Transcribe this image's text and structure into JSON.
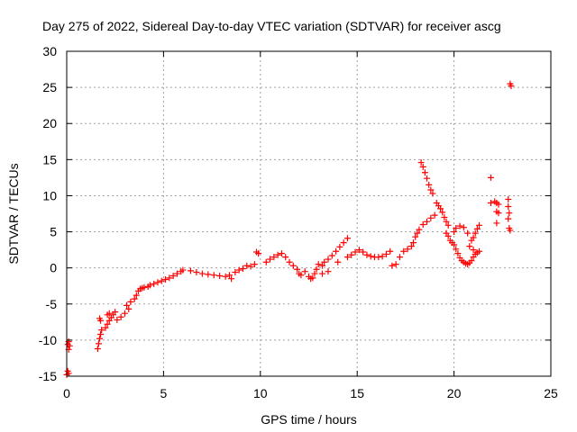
{
  "chart_data": {
    "type": "scatter",
    "title": "Day 275 of 2022, Sidereal Day-to-day VTEC variation (SDTVAR) for receiver ascg",
    "xlabel": "GPS time / hours",
    "ylabel": "SDTVAR / TECUs",
    "xlim": [
      0,
      25
    ],
    "ylim": [
      -15,
      30
    ],
    "xticks": [
      0,
      5,
      10,
      15,
      20,
      25
    ],
    "yticks": [
      -15,
      -10,
      -5,
      0,
      5,
      10,
      15,
      20,
      25,
      30
    ],
    "grid": true,
    "marker": "+",
    "series": [
      {
        "name": "SDTVAR",
        "color": "#ff0000",
        "points": [
          [
            0.0,
            -14.8
          ],
          [
            0.05,
            -14.3
          ],
          [
            0.1,
            -14.6
          ],
          [
            0.05,
            -10.6
          ],
          [
            0.1,
            -10.2
          ],
          [
            0.15,
            -10.8
          ],
          [
            0.1,
            -11.3
          ],
          [
            1.6,
            -11.2
          ],
          [
            1.65,
            -10.5
          ],
          [
            1.7,
            -9.8
          ],
          [
            1.75,
            -9.2
          ],
          [
            1.8,
            -8.6
          ],
          [
            1.7,
            -7.0
          ],
          [
            1.75,
            -7.3
          ],
          [
            2.0,
            -8.3
          ],
          [
            2.1,
            -7.8
          ],
          [
            2.2,
            -7.3
          ],
          [
            2.3,
            -6.9
          ],
          [
            2.4,
            -6.5
          ],
          [
            2.5,
            -6.1
          ],
          [
            2.1,
            -6.5
          ],
          [
            2.2,
            -6.3
          ],
          [
            2.6,
            -7.2
          ],
          [
            2.8,
            -6.8
          ],
          [
            3.0,
            -6.3
          ],
          [
            3.2,
            -5.7
          ],
          [
            3.1,
            -5.2
          ],
          [
            3.3,
            -4.7
          ],
          [
            3.5,
            -4.3
          ],
          [
            3.6,
            -3.8
          ],
          [
            3.7,
            -3.2
          ],
          [
            3.8,
            -2.9
          ],
          [
            3.9,
            -2.8
          ],
          [
            4.0,
            -2.7
          ],
          [
            4.2,
            -2.6
          ],
          [
            4.3,
            -2.4
          ],
          [
            4.5,
            -2.2
          ],
          [
            4.7,
            -2.0
          ],
          [
            4.9,
            -1.8
          ],
          [
            5.1,
            -1.6
          ],
          [
            5.3,
            -1.4
          ],
          [
            5.5,
            -1.1
          ],
          [
            5.7,
            -0.8
          ],
          [
            5.9,
            -0.5
          ],
          [
            6.0,
            -0.3
          ],
          [
            6.4,
            -0.4
          ],
          [
            6.7,
            -0.6
          ],
          [
            7.0,
            -0.8
          ],
          [
            7.3,
            -0.9
          ],
          [
            7.6,
            -1.0
          ],
          [
            7.9,
            -1.1
          ],
          [
            8.2,
            -1.2
          ],
          [
            8.4,
            -1.0
          ],
          [
            8.7,
            -0.6
          ],
          [
            8.9,
            -0.3
          ],
          [
            9.1,
            -0.1
          ],
          [
            8.5,
            -1.5
          ],
          [
            9.3,
            0.3
          ],
          [
            9.5,
            0.2
          ],
          [
            9.7,
            0.5
          ],
          [
            9.8,
            2.2
          ],
          [
            9.9,
            2.0
          ],
          [
            10.3,
            0.8
          ],
          [
            10.5,
            1.2
          ],
          [
            10.7,
            1.5
          ],
          [
            10.9,
            1.8
          ],
          [
            11.1,
            2.0
          ],
          [
            11.3,
            1.5
          ],
          [
            11.5,
            0.8
          ],
          [
            11.7,
            0.3
          ],
          [
            11.9,
            -0.2
          ],
          [
            12.0,
            -0.8
          ],
          [
            12.1,
            -1.0
          ],
          [
            12.3,
            -0.5
          ],
          [
            12.5,
            -1.2
          ],
          [
            12.6,
            -1.5
          ],
          [
            12.7,
            -1.4
          ],
          [
            12.8,
            -0.8
          ],
          [
            12.9,
            -0.2
          ],
          [
            13.0,
            0.5
          ],
          [
            13.2,
            0.3
          ],
          [
            13.3,
            0.8
          ],
          [
            13.5,
            1.2
          ],
          [
            13.7,
            1.7
          ],
          [
            13.9,
            2.3
          ],
          [
            14.1,
            2.9
          ],
          [
            14.3,
            3.5
          ],
          [
            14.5,
            4.1
          ],
          [
            13.2,
            -0.8
          ],
          [
            13.5,
            -0.5
          ],
          [
            14.0,
            0.8
          ],
          [
            14.5,
            1.5
          ],
          [
            14.7,
            1.8
          ],
          [
            14.9,
            2.2
          ],
          [
            15.1,
            2.5
          ],
          [
            15.3,
            2.2
          ],
          [
            15.5,
            1.8
          ],
          [
            15.7,
            1.6
          ],
          [
            15.9,
            1.5
          ],
          [
            16.1,
            1.5
          ],
          [
            16.3,
            1.6
          ],
          [
            16.5,
            1.9
          ],
          [
            16.7,
            2.3
          ],
          [
            16.8,
            0.3
          ],
          [
            17.0,
            0.5
          ],
          [
            17.2,
            1.5
          ],
          [
            17.4,
            2.3
          ],
          [
            17.6,
            2.6
          ],
          [
            17.8,
            3.0
          ],
          [
            17.9,
            3.5
          ],
          [
            18.0,
            4.3
          ],
          [
            18.1,
            4.8
          ],
          [
            18.2,
            5.3
          ],
          [
            18.4,
            6.0
          ],
          [
            18.6,
            6.4
          ],
          [
            18.8,
            6.9
          ],
          [
            19.0,
            7.3
          ],
          [
            18.3,
            14.6
          ],
          [
            18.4,
            14.0
          ],
          [
            18.5,
            13.2
          ],
          [
            18.6,
            12.4
          ],
          [
            18.7,
            11.5
          ],
          [
            18.8,
            10.8
          ],
          [
            18.9,
            10.3
          ],
          [
            19.1,
            9.0
          ],
          [
            19.2,
            8.6
          ],
          [
            19.3,
            8.2
          ],
          [
            19.4,
            7.7
          ],
          [
            19.5,
            7.0
          ],
          [
            19.6,
            6.4
          ],
          [
            19.7,
            5.9
          ],
          [
            19.6,
            4.8
          ],
          [
            19.7,
            4.4
          ],
          [
            19.8,
            3.8
          ],
          [
            19.9,
            3.5
          ],
          [
            20.0,
            3.2
          ],
          [
            20.1,
            2.6
          ],
          [
            20.2,
            2.0
          ],
          [
            20.3,
            1.4
          ],
          [
            20.4,
            1.0
          ],
          [
            20.5,
            0.8
          ],
          [
            20.6,
            0.6
          ],
          [
            20.7,
            0.5
          ],
          [
            20.8,
            0.7
          ],
          [
            20.9,
            1.0
          ],
          [
            21.0,
            1.5
          ],
          [
            21.1,
            1.9
          ],
          [
            21.2,
            2.1
          ],
          [
            21.3,
            2.3
          ],
          [
            20.0,
            5.0
          ],
          [
            20.1,
            5.5
          ],
          [
            20.3,
            5.8
          ],
          [
            20.5,
            5.6
          ],
          [
            20.7,
            4.8
          ],
          [
            20.9,
            3.8
          ],
          [
            21.0,
            4.2
          ],
          [
            21.1,
            4.8
          ],
          [
            21.2,
            5.4
          ],
          [
            21.3,
            5.9
          ],
          [
            20.8,
            3.0
          ],
          [
            21.0,
            2.5
          ],
          [
            21.9,
            12.5
          ],
          [
            21.9,
            9.0
          ],
          [
            22.1,
            9.2
          ],
          [
            22.2,
            9.0
          ],
          [
            22.3,
            8.8
          ],
          [
            22.2,
            7.8
          ],
          [
            22.3,
            7.6
          ],
          [
            22.2,
            6.2
          ],
          [
            22.8,
            9.5
          ],
          [
            22.8,
            8.5
          ],
          [
            22.85,
            7.6
          ],
          [
            22.8,
            6.8
          ],
          [
            22.85,
            5.5
          ],
          [
            22.9,
            5.2
          ],
          [
            22.9,
            25.5
          ],
          [
            22.95,
            25.2
          ]
        ]
      }
    ]
  }
}
